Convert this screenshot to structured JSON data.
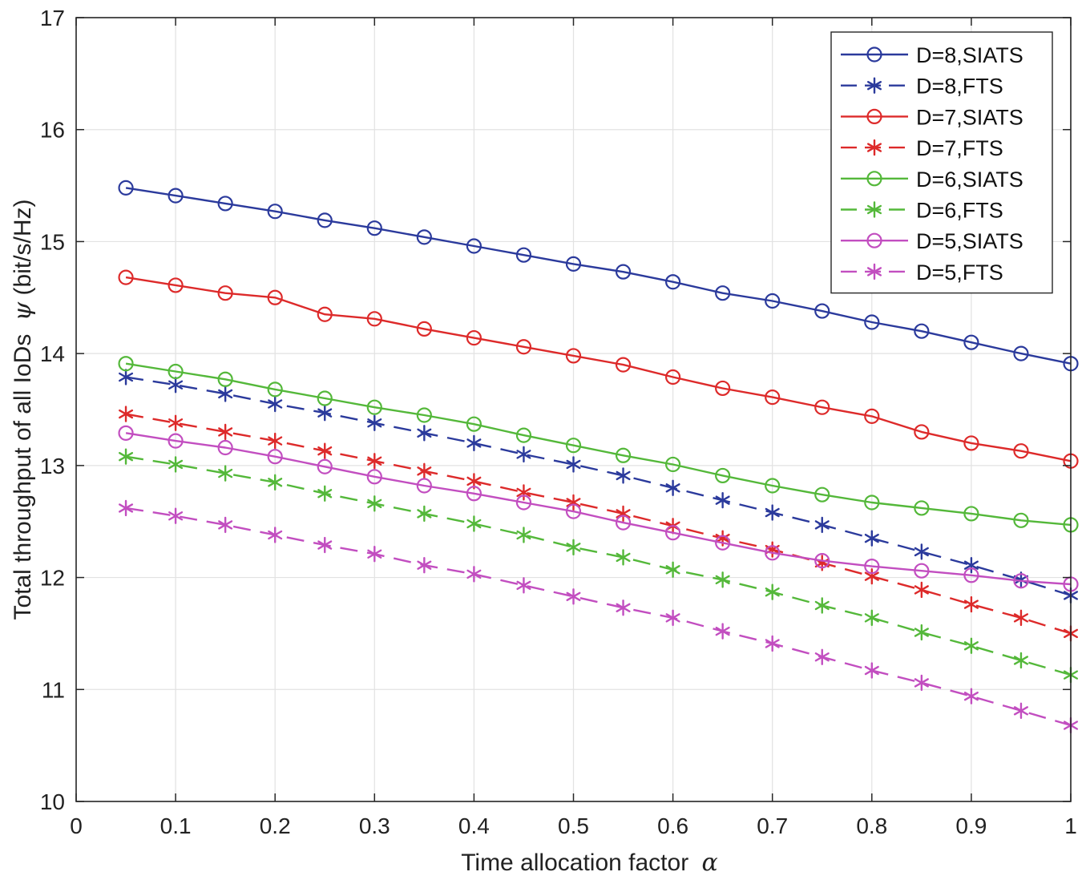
{
  "chart_data": {
    "type": "line",
    "title": "",
    "xlabel": "Time allocation factor",
    "xlabel_symbol": "α",
    "ylabel_prefix": "Total throughput of all IoDs",
    "ylabel_symbol": "ψ",
    "ylabel_suffix": "(bit/s/Hz)",
    "xlim": [
      0,
      1
    ],
    "ylim": [
      10,
      17
    ],
    "xticks": [
      "0",
      "0.1",
      "0.2",
      "0.3",
      "0.4",
      "0.5",
      "0.6",
      "0.7",
      "0.8",
      "0.9",
      "1"
    ],
    "yticks": [
      "10",
      "11",
      "12",
      "13",
      "14",
      "15",
      "16",
      "17"
    ],
    "grid": true,
    "legend_position": "top-right",
    "x": [
      0.05,
      0.1,
      0.15,
      0.2,
      0.25,
      0.3,
      0.35,
      0.4,
      0.45,
      0.5,
      0.55,
      0.6,
      0.65,
      0.7,
      0.75,
      0.8,
      0.85,
      0.9,
      0.95,
      1.0
    ],
    "series": [
      {
        "name": "D=8,SIATS",
        "color": "#2b3a9c",
        "marker": "circle",
        "dash": "solid",
        "values": [
          15.48,
          15.41,
          15.34,
          15.27,
          15.19,
          15.12,
          15.04,
          14.96,
          14.88,
          14.8,
          14.73,
          14.64,
          14.54,
          14.47,
          14.38,
          14.28,
          14.2,
          14.1,
          14.0,
          13.91
        ]
      },
      {
        "name": "D=8,FTS",
        "color": "#2b3a9c",
        "marker": "star",
        "dash": "dashed",
        "values": [
          13.79,
          13.72,
          13.64,
          13.55,
          13.47,
          13.38,
          13.29,
          13.2,
          13.1,
          13.01,
          12.91,
          12.8,
          12.69,
          12.58,
          12.47,
          12.35,
          12.23,
          12.11,
          11.98,
          11.84
        ]
      },
      {
        "name": "D=7,SIATS",
        "color": "#dd2a2a",
        "marker": "circle",
        "dash": "solid",
        "values": [
          14.68,
          14.61,
          14.54,
          14.5,
          14.35,
          14.31,
          14.22,
          14.14,
          14.06,
          13.98,
          13.9,
          13.79,
          13.69,
          13.61,
          13.52,
          13.44,
          13.3,
          13.2,
          13.13,
          13.04
        ]
      },
      {
        "name": "D=7,FTS",
        "color": "#dd2a2a",
        "marker": "star",
        "dash": "dashed",
        "values": [
          13.46,
          13.38,
          13.3,
          13.22,
          13.13,
          13.04,
          12.95,
          12.86,
          12.76,
          12.67,
          12.57,
          12.46,
          12.35,
          12.25,
          12.13,
          12.01,
          11.89,
          11.76,
          11.64,
          11.5
        ]
      },
      {
        "name": "D=6,SIATS",
        "color": "#54b83a",
        "marker": "circle",
        "dash": "solid",
        "values": [
          13.91,
          13.84,
          13.77,
          13.68,
          13.6,
          13.52,
          13.45,
          13.37,
          13.27,
          13.18,
          13.09,
          13.01,
          12.91,
          12.82,
          12.74,
          12.67,
          12.62,
          12.57,
          12.51,
          12.47
        ]
      },
      {
        "name": "D=6,FTS",
        "color": "#54b83a",
        "marker": "star",
        "dash": "dashed",
        "values": [
          13.08,
          13.01,
          12.93,
          12.85,
          12.75,
          12.66,
          12.57,
          12.48,
          12.38,
          12.27,
          12.18,
          12.07,
          11.98,
          11.87,
          11.75,
          11.64,
          11.51,
          11.39,
          11.26,
          11.13
        ]
      },
      {
        "name": "D=5,SIATS",
        "color": "#c24ec0",
        "marker": "circle",
        "dash": "solid",
        "values": [
          13.29,
          13.22,
          13.16,
          13.08,
          12.99,
          12.9,
          12.82,
          12.75,
          12.67,
          12.59,
          12.49,
          12.4,
          12.31,
          12.22,
          12.15,
          12.1,
          12.06,
          12.02,
          11.97,
          11.94
        ]
      },
      {
        "name": "D=5,FTS",
        "color": "#c24ec0",
        "marker": "star",
        "dash": "dashed",
        "values": [
          12.62,
          12.55,
          12.47,
          12.38,
          12.29,
          12.21,
          12.11,
          12.03,
          11.93,
          11.83,
          11.73,
          11.64,
          11.52,
          11.41,
          11.29,
          11.17,
          11.06,
          10.94,
          10.81,
          10.68
        ]
      }
    ]
  }
}
